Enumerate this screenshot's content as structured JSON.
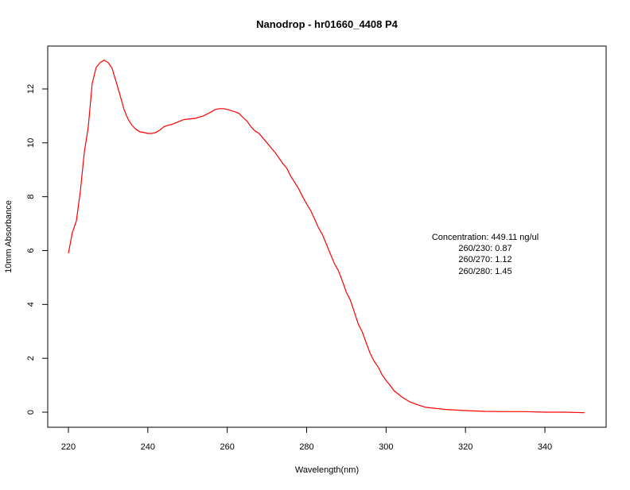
{
  "chart_data": {
    "type": "line",
    "title": "Nanodrop - hr01660_4408 P4",
    "xlabel": "Wavelength(nm)",
    "ylabel": "10mm Absorbance",
    "xlim": [
      215,
      355
    ],
    "ylim": [
      -0.6,
      13.5
    ],
    "xticks": [
      220,
      240,
      260,
      280,
      300,
      320,
      340
    ],
    "yticks": [
      0,
      2,
      4,
      6,
      8,
      10,
      12
    ],
    "grid": false,
    "line_color": "#ff0000",
    "annotations": [
      "Concentration: 449.11 ng/ul",
      "260/230: 0.87",
      "260/270: 1.12",
      "260/280: 1.45"
    ],
    "series": [
      {
        "name": "absorbance",
        "x": [
          220,
          221,
          222,
          223,
          224,
          225,
          226,
          227,
          228,
          229,
          230,
          231,
          232,
          233,
          234,
          235,
          236,
          237,
          238,
          239,
          240,
          241,
          242,
          243,
          244,
          245,
          246,
          247,
          248,
          249,
          250,
          252,
          254,
          256,
          257,
          258,
          259,
          260,
          262,
          263,
          264,
          265,
          266,
          267,
          268,
          270,
          271,
          272,
          274,
          275,
          276,
          277,
          278,
          279,
          280,
          281,
          282,
          283,
          284,
          285,
          286,
          287,
          288,
          289,
          290,
          291,
          292,
          293,
          294,
          295,
          296,
          297,
          298,
          299,
          300,
          301,
          302,
          303,
          304,
          306,
          308,
          310,
          315,
          320,
          325,
          330,
          335,
          340,
          345,
          350
        ],
        "y": [
          5.9,
          6.67,
          7.1,
          8.2,
          9.65,
          10.6,
          12.2,
          12.8,
          12.98,
          13.07,
          12.98,
          12.77,
          12.27,
          11.77,
          11.24,
          10.88,
          10.65,
          10.5,
          10.41,
          10.38,
          10.35,
          10.35,
          10.38,
          10.47,
          10.59,
          10.65,
          10.68,
          10.74,
          10.8,
          10.86,
          10.88,
          10.91,
          11.0,
          11.15,
          11.24,
          11.27,
          11.27,
          11.24,
          11.15,
          11.09,
          10.94,
          10.8,
          10.59,
          10.44,
          10.35,
          10.0,
          9.82,
          9.65,
          9.23,
          9.06,
          8.76,
          8.53,
          8.29,
          8.0,
          7.73,
          7.49,
          7.17,
          6.84,
          6.58,
          6.22,
          5.87,
          5.52,
          5.25,
          4.87,
          4.45,
          4.16,
          3.72,
          3.27,
          2.98,
          2.57,
          2.18,
          1.89,
          1.68,
          1.39,
          1.18,
          1.0,
          0.8,
          0.68,
          0.56,
          0.38,
          0.27,
          0.18,
          0.1,
          0.06,
          0.03,
          0.02,
          0.02,
          0.0,
          0.0,
          -0.02
        ]
      }
    ]
  }
}
